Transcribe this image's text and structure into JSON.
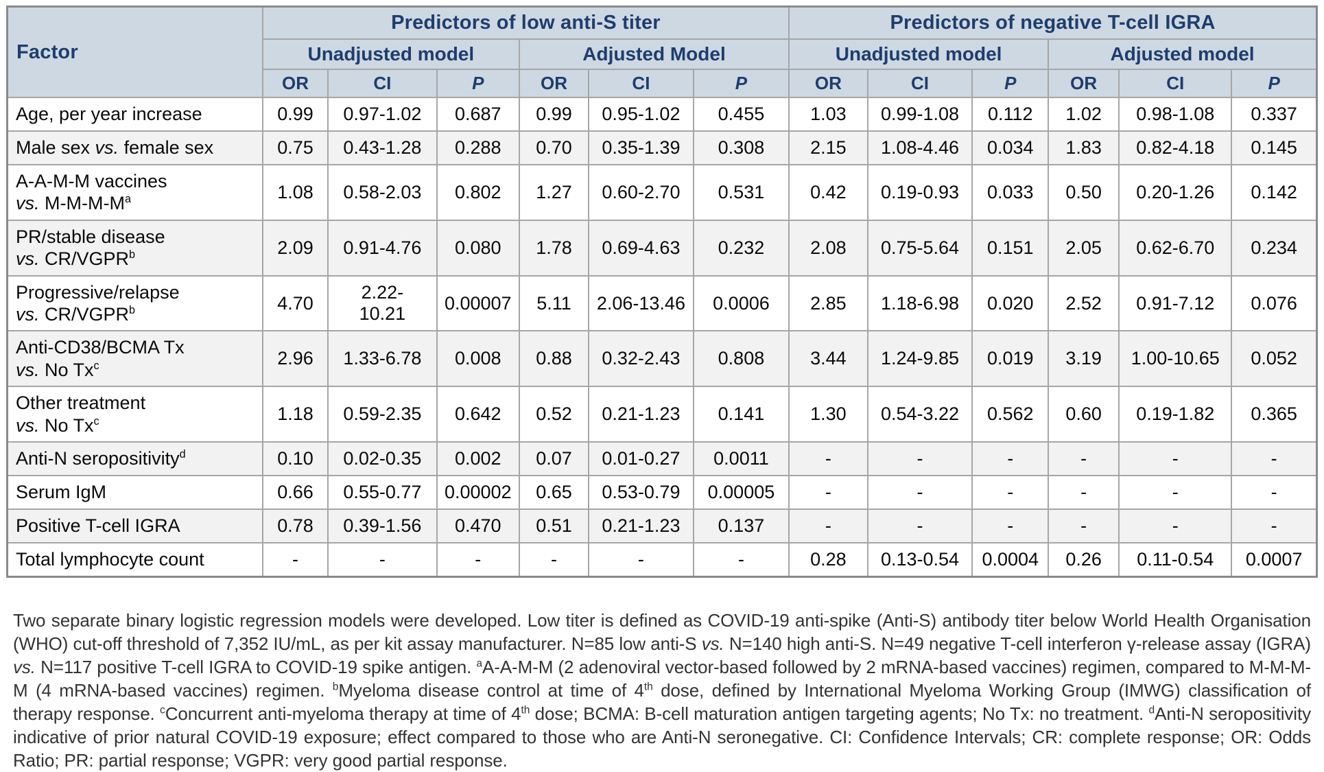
{
  "colors": {
    "header_bg": "#cdd8e3",
    "header_text": "#1f3d6d",
    "row_alt_bg": "#f2f2f2",
    "border": "#a6a6a6",
    "body_text": "#0a0a0a",
    "footnote_text": "#333333"
  },
  "table": {
    "factor_header": "Factor",
    "groups": [
      {
        "label": "Predictors of low anti-S titer"
      },
      {
        "label": "Predictors of negative T-cell IGRA"
      }
    ],
    "models": [
      "Unadjusted model",
      "Adjusted Model",
      "Unadjusted model",
      "Adjusted model"
    ],
    "metrics": [
      "OR",
      "CI",
      "P"
    ],
    "rows": [
      {
        "factor": "Age, per year increase",
        "values": [
          "0.99",
          "0.97-1.02",
          "0.687",
          "0.99",
          "0.95-1.02",
          "0.455",
          "1.03",
          "0.99-1.08",
          "0.112",
          "1.02",
          "0.98-1.08",
          "0.337"
        ]
      },
      {
        "factor": "Male sex *vs.* female sex",
        "values": [
          "0.75",
          "0.43-1.28",
          "0.288",
          "0.70",
          "0.35-1.39",
          "0.308",
          "2.15",
          "1.08-4.46",
          "0.034",
          "1.83",
          "0.82-4.18",
          "0.145"
        ]
      },
      {
        "factor": "A-A-M-M vaccines\n*vs.* M-M-M-M^{a}",
        "values": [
          "1.08",
          "0.58-2.03",
          "0.802",
          "1.27",
          "0.60-2.70",
          "0.531",
          "0.42",
          "0.19-0.93",
          "0.033",
          "0.50",
          "0.20-1.26",
          "0.142"
        ]
      },
      {
        "factor": "PR/stable disease\n*vs.*  CR/VGPR^{b}",
        "values": [
          "2.09",
          "0.91-4.76",
          "0.080",
          "1.78",
          "0.69-4.63",
          "0.232",
          "2.08",
          "0.75-5.64",
          "0.151",
          "2.05",
          "0.62-6.70",
          "0.234"
        ]
      },
      {
        "factor": "Progressive/relapse\n*vs.*  CR/VGPR^{b}",
        "values": [
          "4.70",
          "2.22-\n10.21",
          "0.00007",
          "5.11",
          "2.06-13.46",
          "0.0006",
          "2.85",
          "1.18-6.98",
          "0.020",
          "2.52",
          "0.91-7.12",
          "0.076"
        ]
      },
      {
        "factor": "Anti-CD38/BCMA Tx\n*vs.* No Tx^{c}",
        "values": [
          "2.96",
          "1.33-6.78",
          "0.008",
          "0.88",
          "0.32-2.43",
          "0.808",
          "3.44",
          "1.24-9.85",
          "0.019",
          "3.19",
          "1.00-10.65",
          "0.052"
        ]
      },
      {
        "factor": "Other treatment\n*vs.* No Tx^{c}",
        "values": [
          "1.18",
          "0.59-2.35",
          "0.642",
          "0.52",
          "0.21-1.23",
          "0.141",
          "1.30",
          "0.54-3.22",
          "0.562",
          "0.60",
          "0.19-1.82",
          "0.365"
        ]
      },
      {
        "factor": "Anti-N seropositivity^{d}",
        "values": [
          "0.10",
          "0.02-0.35",
          "0.002",
          "0.07",
          "0.01-0.27",
          "0.0011",
          "-",
          "-",
          "-",
          "-",
          "-",
          "-"
        ]
      },
      {
        "factor": "Serum IgM",
        "values": [
          "0.66",
          "0.55-0.77",
          "0.00002",
          "0.65",
          "0.53-0.79",
          "0.00005",
          "-",
          "-",
          "-",
          "-",
          "-",
          "-"
        ]
      },
      {
        "factor": "Positive T-cell IGRA",
        "values": [
          "0.78",
          "0.39-1.56",
          "0.470",
          "0.51",
          "0.21-1.23",
          "0.137",
          "-",
          "-",
          "-",
          "-",
          "-",
          "-"
        ]
      },
      {
        "factor": "Total lymphocyte count",
        "values": [
          "-",
          "-",
          "-",
          "-",
          "-",
          "-",
          "0.28",
          "0.13-0.54",
          "0.0004",
          "0.26",
          "0.11-0.54",
          "0.0007"
        ]
      }
    ]
  },
  "footnote": "Two separate binary logistic regression models were developed. Low titer is defined as COVID-19 anti-spike (Anti-S) antibody titer below World Health Organisation (WHO) cut-off threshold of 7,352 IU/mL, as per kit assay manufacturer. N=85 low anti-S *vs.* N=140 high anti-S. N=49 negative T-cell interferon γ-release assay (IGRA) *vs.* N=117 positive T-cell IGRA to COVID-19 spike antigen. ^{a}A-A-M-M (2 adenoviral vector-based followed by 2 mRNA-based vaccines) regimen, compared to M-M-M-M (4 mRNA-based vaccines) regimen. ^{b}Myeloma disease control at time of 4^{th} dose, defined by International Myeloma Working Group (IMWG) classification of therapy response. ^{c}Concurrent anti-myeloma therapy at time of 4^{th} dose; BCMA: B-cell maturation antigen targeting agents; No Tx: no treatment. ^{d}Anti-N seropositivity indicative of prior natural COVID-19 exposure; effect compared to those who are Anti-N seronegative. CI: Confidence Intervals; CR: complete response; OR: Odds Ratio; PR: partial response; VGPR: very good partial response."
}
